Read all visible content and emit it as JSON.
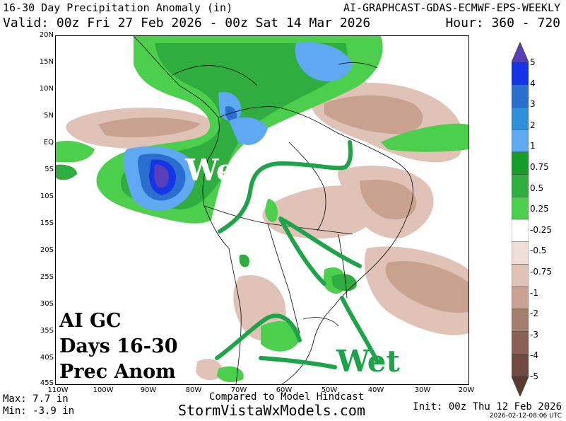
{
  "header": {
    "title_left": "16-30 Day Precipitation Anomaly (in)",
    "title_right": "AI-GRAPHCAST-GDAS-ECMWF-EPS-WEEKLY",
    "valid": "Valid: 00z Fri 27 Feb 2026 - 00z Sat 14 Mar 2026",
    "hour": "Hour: 360 - 720"
  },
  "map": {
    "lat_labels": [
      "20N",
      "15N",
      "10N",
      "5N",
      "EQ",
      "5S",
      "10S",
      "15S",
      "20S",
      "25S",
      "30S",
      "35S",
      "40S",
      "45S"
    ],
    "lon_labels": [
      "110W",
      "100W",
      "90W",
      "80W",
      "70W",
      "60W",
      "50W",
      "40W",
      "30W",
      "20W"
    ],
    "annotation_block": [
      "AI GC",
      "Days 16-30",
      "Prec Anom"
    ],
    "wet_label_1": "Wet",
    "wet_label_2": "Wet"
  },
  "legend": {
    "labels": [
      "5",
      "4",
      "3",
      "2",
      "1",
      "0.75",
      "0.5",
      "0.25",
      "-0.25",
      "-0.5",
      "-0.75",
      "-1",
      "-2",
      "-3",
      "-4",
      "-5"
    ],
    "colors": [
      "#5a3db8",
      "#1535e6",
      "#2a6fd0",
      "#2f8fd8",
      "#5fa9f2",
      "#159c2b",
      "#2fae3f",
      "#4ccf4c",
      "#ffffff",
      "#f0dfd6",
      "#e0c2b6",
      "#c8a191",
      "#a67e70",
      "#8a6054",
      "#6e4a40",
      "#5a3a30"
    ]
  },
  "footer": {
    "max": "Max: 7.7 in",
    "min": "Min: -3.9 in",
    "compare": "Compared to Model Hindcast",
    "site": "StormVistaWxModels.com",
    "init": "Init: 00z Thu 12 Feb 2026",
    "stamp": "2026-02-12-08:06 UTC"
  }
}
